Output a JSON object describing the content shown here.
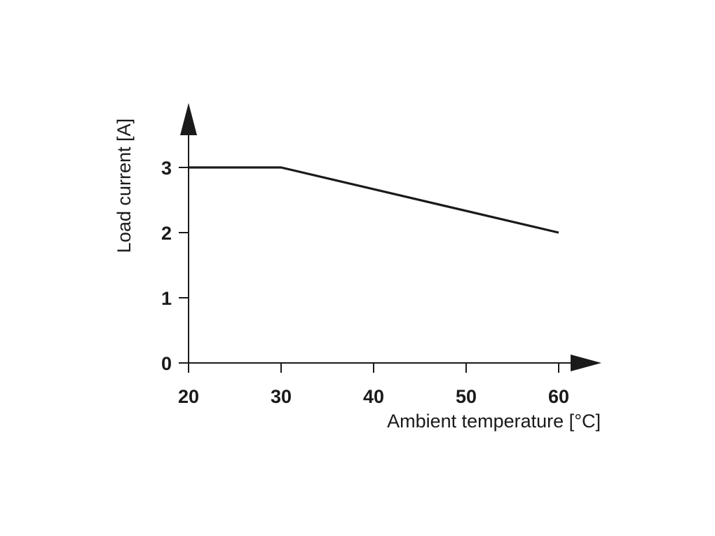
{
  "chart_data": {
    "type": "line",
    "title": "",
    "xlabel": "Ambient temperature [°C]",
    "ylabel": "Load current [A]",
    "xlim": [
      20,
      60
    ],
    "ylim": [
      0,
      3
    ],
    "x_ticks": [
      20,
      30,
      40,
      50,
      60
    ],
    "y_ticks": [
      0,
      1,
      2,
      3
    ],
    "grid": false,
    "series": [
      {
        "x": [
          20,
          30,
          60
        ],
        "y": [
          3,
          3,
          2
        ]
      }
    ],
    "colors": {
      "axis": "#1a1a1a",
      "line": "#1a1a1a"
    }
  }
}
